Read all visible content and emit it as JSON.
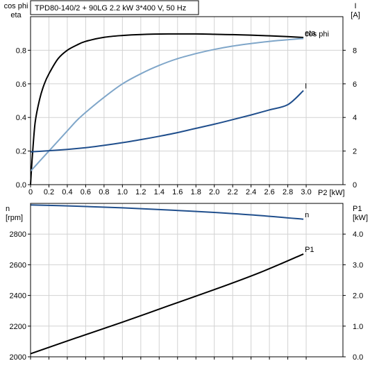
{
  "chart_data": [
    {
      "type": "line",
      "title": "TPD80-140/2 + 90LG   2.2 kW   3*400 V, 50 Hz",
      "xlabel": "P2 [kW]",
      "xlim": [
        0,
        3.4
      ],
      "xticks": [
        "0",
        "0.2",
        "0.4",
        "0.6",
        "0.8",
        "1.0",
        "1.2",
        "1.4",
        "1.6",
        "1.8",
        "2.0",
        "2.2",
        "2.4",
        "2.6",
        "2.8",
        "3.0"
      ],
      "y_left": {
        "label_lines": [
          "cos phi",
          "eta"
        ],
        "lim": [
          0,
          1.0
        ],
        "ticks": [
          "0.0",
          "0.2",
          "0.4",
          "0.6",
          "0.8"
        ]
      },
      "y_right": {
        "label_lines": [
          "I",
          "[A]"
        ],
        "lim": [
          0,
          10.0
        ],
        "ticks": [
          "0",
          "2",
          "4",
          "6",
          "8"
        ]
      },
      "grid": true,
      "series": [
        {
          "name": "eta",
          "axis": "left",
          "color": "#000000",
          "x": [
            0,
            0.02,
            0.05,
            0.1,
            0.15,
            0.2,
            0.3,
            0.4,
            0.5,
            0.6,
            0.8,
            1.0,
            1.2,
            1.5,
            1.8,
            2.0,
            2.2,
            2.5,
            2.8,
            2.97
          ],
          "y": [
            0,
            0.17,
            0.37,
            0.51,
            0.6,
            0.66,
            0.75,
            0.8,
            0.83,
            0.853,
            0.877,
            0.888,
            0.894,
            0.897,
            0.897,
            0.895,
            0.893,
            0.888,
            0.881,
            0.876
          ]
        },
        {
          "name": "cos phi",
          "axis": "left",
          "color": "#7fa6c9",
          "x": [
            0,
            0.1,
            0.2,
            0.3,
            0.4,
            0.5,
            0.6,
            0.8,
            1.0,
            1.2,
            1.4,
            1.6,
            1.8,
            2.0,
            2.2,
            2.4,
            2.6,
            2.8,
            2.97
          ],
          "y": [
            0.08,
            0.14,
            0.2,
            0.26,
            0.32,
            0.38,
            0.43,
            0.52,
            0.6,
            0.66,
            0.71,
            0.75,
            0.78,
            0.805,
            0.825,
            0.84,
            0.853,
            0.863,
            0.87
          ]
        },
        {
          "name": "I",
          "axis": "right",
          "color": "#1f4e8c",
          "x": [
            0,
            0.2,
            0.4,
            0.6,
            0.8,
            1.0,
            1.2,
            1.4,
            1.6,
            1.8,
            2.0,
            2.2,
            2.4,
            2.6,
            2.8,
            2.97
          ],
          "y": [
            1.95,
            2.02,
            2.1,
            2.2,
            2.34,
            2.5,
            2.68,
            2.88,
            3.1,
            3.35,
            3.6,
            3.87,
            4.15,
            4.45,
            4.76,
            5.6
          ]
        }
      ]
    },
    {
      "type": "line",
      "xlim": [
        0,
        3.4
      ],
      "y_left": {
        "label_lines": [
          "n",
          "[rpm]"
        ],
        "lim": [
          2000,
          3000
        ],
        "ticks": [
          "2000",
          "2200",
          "2400",
          "2600",
          "2800"
        ]
      },
      "y_right": {
        "label_lines": [
          "P1",
          "[kW]"
        ],
        "lim": [
          0,
          5.0
        ],
        "ticks": [
          "0.0",
          "1.0",
          "2.0",
          "3.0",
          "4.0"
        ]
      },
      "grid": true,
      "series": [
        {
          "name": "n",
          "axis": "left",
          "color": "#1f4e8c",
          "x": [
            0,
            0.5,
            1.0,
            1.5,
            2.0,
            2.5,
            2.97
          ],
          "y": [
            2990,
            2982,
            2971,
            2957,
            2941,
            2921,
            2897
          ]
        },
        {
          "name": "P1",
          "axis": "right",
          "color": "#000000",
          "x": [
            0,
            0.5,
            1.0,
            1.5,
            2.0,
            2.5,
            2.97
          ],
          "y": [
            0.1,
            0.62,
            1.13,
            1.66,
            2.19,
            2.75,
            3.35
          ]
        }
      ]
    }
  ]
}
